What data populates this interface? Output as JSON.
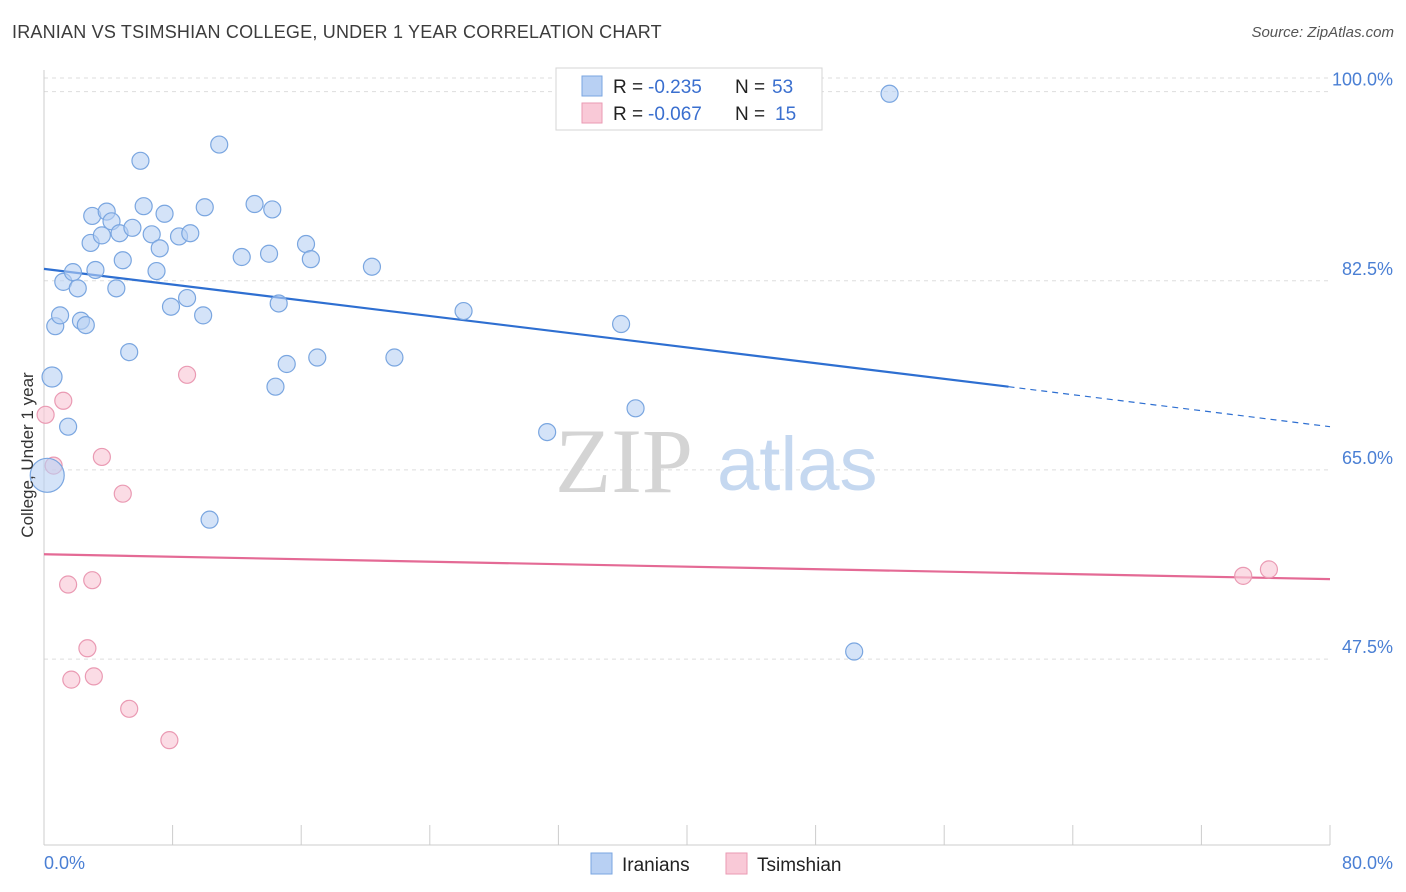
{
  "header": {
    "title": "IRANIAN VS TSIMSHIAN COLLEGE, UNDER 1 YEAR CORRELATION CHART",
    "source": "Source: ZipAtlas.com"
  },
  "watermark": {
    "zip": "ZIP",
    "atlas": "atlas"
  },
  "colors": {
    "blue_fill": "#b8d0f3",
    "blue_stroke": "#7aa6e0",
    "blue_line": "#2e6fd1",
    "pink_fill": "#f9c9d7",
    "pink_stroke": "#ea9ab3",
    "pink_line": "#e46a95",
    "grid": "#dddddd",
    "tick_text": "#4a7fd4"
  },
  "legend": {
    "rows": [
      {
        "r_label": "R =",
        "r_value": "-0.235",
        "n_label": "N =",
        "n_value": "53"
      },
      {
        "r_label": "R =",
        "r_value": "-0.067",
        "n_label": "N =",
        "n_value": "15"
      }
    ]
  },
  "chart_data": {
    "type": "scatter",
    "title": "IRANIAN VS TSIMSHIAN COLLEGE, UNDER 1 YEAR CORRELATION CHART",
    "xlabel": "",
    "ylabel": "College, Under 1 year",
    "xlim": [
      0,
      80
    ],
    "ylim": [
      30.3,
      102
    ],
    "x_tick_labels": [
      "0.0%",
      "80.0%"
    ],
    "y_ticks": [
      47.5,
      65.0,
      82.5,
      100.0
    ],
    "y_tick_labels": [
      "47.5%",
      "65.0%",
      "82.5%",
      "100.0%"
    ],
    "grid": true,
    "legend_position": "bottom",
    "series": [
      {
        "name": "Iranians",
        "r": -0.235,
        "n": 53,
        "trend": {
          "x_start": 0,
          "y_start": 83.6,
          "x_solid_end": 60,
          "y_solid_end": 72.7,
          "x_end": 80,
          "y_end": 69.0
        },
        "points": [
          [
            0.2,
            64.5
          ],
          [
            0.5,
            73.6
          ],
          [
            0.7,
            78.3
          ],
          [
            1.0,
            79.3
          ],
          [
            1.2,
            82.4
          ],
          [
            1.5,
            69.0
          ],
          [
            1.8,
            83.3
          ],
          [
            2.1,
            81.8
          ],
          [
            2.3,
            78.8
          ],
          [
            2.6,
            78.4
          ],
          [
            2.9,
            86.0
          ],
          [
            3.0,
            88.5
          ],
          [
            3.2,
            83.5
          ],
          [
            3.6,
            86.7
          ],
          [
            3.9,
            88.9
          ],
          [
            4.2,
            88.0
          ],
          [
            4.5,
            81.8
          ],
          [
            4.7,
            86.9
          ],
          [
            4.9,
            84.4
          ],
          [
            5.3,
            75.9
          ],
          [
            5.5,
            87.4
          ],
          [
            6.0,
            93.6
          ],
          [
            6.2,
            89.4
          ],
          [
            6.7,
            86.8
          ],
          [
            7.0,
            83.4
          ],
          [
            7.2,
            85.5
          ],
          [
            7.5,
            88.7
          ],
          [
            7.9,
            80.1
          ],
          [
            8.4,
            86.6
          ],
          [
            8.9,
            80.9
          ],
          [
            9.1,
            86.9
          ],
          [
            9.9,
            79.3
          ],
          [
            10.0,
            89.3
          ],
          [
            10.3,
            60.4
          ],
          [
            10.9,
            95.1
          ],
          [
            12.3,
            84.7
          ],
          [
            13.1,
            89.6
          ],
          [
            14.0,
            85.0
          ],
          [
            14.2,
            89.1
          ],
          [
            14.4,
            72.7
          ],
          [
            14.6,
            80.4
          ],
          [
            15.1,
            74.8
          ],
          [
            16.3,
            85.9
          ],
          [
            16.6,
            84.5
          ],
          [
            17.0,
            75.4
          ],
          [
            20.4,
            83.8
          ],
          [
            21.8,
            75.4
          ],
          [
            26.1,
            79.7
          ],
          [
            31.3,
            68.5
          ],
          [
            35.9,
            78.5
          ],
          [
            36.8,
            70.7
          ],
          [
            50.4,
            48.2
          ],
          [
            52.6,
            99.8
          ]
        ]
      },
      {
        "name": "Tsimshian",
        "r": -0.067,
        "n": 15,
        "trend": {
          "x_start": 0,
          "y_start": 57.2,
          "x_end": 80,
          "y_end": 54.9
        },
        "points": [
          [
            0.1,
            70.1
          ],
          [
            0.6,
            65.4
          ],
          [
            1.2,
            71.4
          ],
          [
            1.5,
            54.4
          ],
          [
            1.7,
            45.6
          ],
          [
            3.0,
            54.8
          ],
          [
            2.7,
            48.5
          ],
          [
            3.1,
            45.9
          ],
          [
            3.6,
            66.2
          ],
          [
            4.9,
            62.8
          ],
          [
            5.3,
            42.9
          ],
          [
            7.8,
            40.0
          ],
          [
            8.9,
            73.8
          ],
          [
            74.6,
            55.2
          ],
          [
            76.2,
            55.8
          ]
        ]
      }
    ]
  }
}
